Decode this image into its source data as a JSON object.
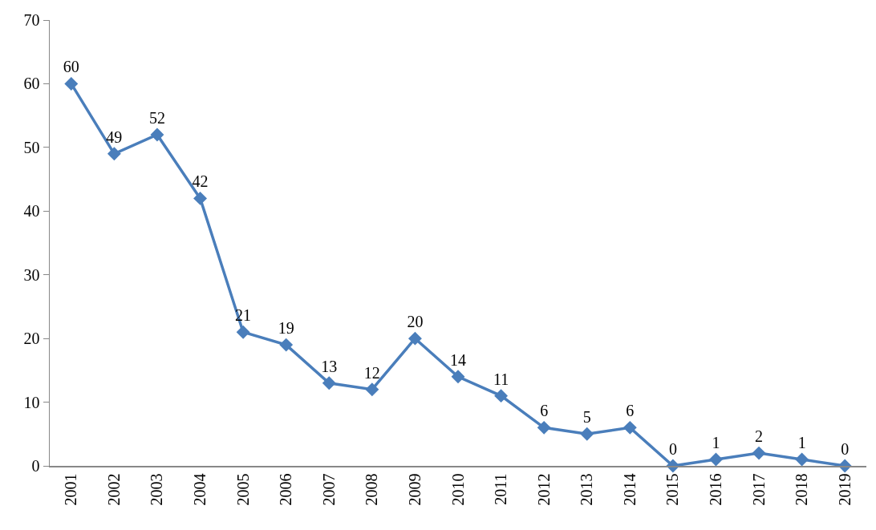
{
  "chart_data": {
    "type": "line",
    "categories": [
      "2001",
      "2002",
      "2003",
      "2004",
      "2005",
      "2006",
      "2007",
      "2008",
      "2009",
      "2010",
      "2011",
      "2012",
      "2013",
      "2014",
      "2015",
      "2016",
      "2017",
      "2018",
      "2019"
    ],
    "values": [
      60,
      49,
      52,
      42,
      21,
      19,
      13,
      12,
      20,
      14,
      11,
      6,
      5,
      6,
      0,
      1,
      2,
      1,
      0
    ],
    "color": "#4a7ebb",
    "marker": "diamond",
    "data_labels": true,
    "ylim": [
      0,
      70
    ],
    "yticks": [
      0,
      10,
      20,
      30,
      40,
      50,
      60,
      70
    ]
  }
}
